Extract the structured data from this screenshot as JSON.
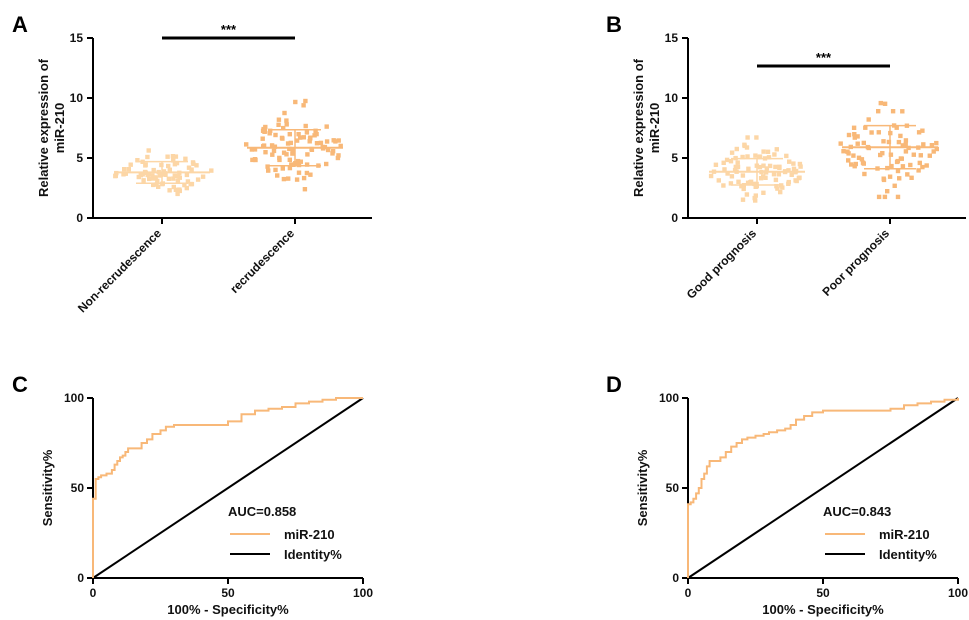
{
  "colors": {
    "light_orange": "#fcd6a6",
    "orange": "#f8b878",
    "roc": "#f8b878",
    "identity": "#000000"
  },
  "chart_data": [
    {
      "panel": "A",
      "type": "scatter",
      "ylabel_line1": "Relative expression of",
      "ylabel_line2": "miR-210",
      "ylim": [
        0,
        15
      ],
      "yticks": [
        "0",
        "5",
        "10",
        "15"
      ],
      "categories": [
        "Non-recrudescence",
        "recrudescence"
      ],
      "mean": [
        3.8,
        5.85
      ],
      "sd": [
        0.9,
        1.5
      ],
      "n": [
        80,
        100
      ],
      "series_colors": [
        "#fcd6a6",
        "#f8b878"
      ],
      "significance": "***"
    },
    {
      "panel": "B",
      "type": "scatter",
      "ylabel_line1": "Relative expression of",
      "ylabel_line2": "miR-210",
      "ylim": [
        0,
        15
      ],
      "yticks": [
        "0",
        "5",
        "10",
        "15"
      ],
      "categories": [
        "Good prognosis",
        "Poor prognosis"
      ],
      "mean": [
        3.85,
        5.9
      ],
      "sd": [
        1.1,
        1.8
      ],
      "n": [
        95,
        85
      ],
      "series_colors": [
        "#fcd6a6",
        "#f8b878"
      ],
      "significance": "***"
    },
    {
      "panel": "C",
      "type": "line",
      "xlabel": "100% - Specificity%",
      "ylabel": "Sensitivity%",
      "xlim": [
        0,
        100
      ],
      "ylim": [
        0,
        100
      ],
      "xticks": [
        "0",
        "50",
        "100"
      ],
      "yticks": [
        "0",
        "50",
        "100"
      ],
      "auc_label": "AUC=0.858",
      "series": [
        {
          "name": "miR-210",
          "x": [
            0,
            0,
            1,
            1,
            2,
            3,
            5,
            7,
            8,
            9,
            10,
            11,
            12,
            13,
            15,
            18,
            20,
            22,
            25,
            27,
            30,
            35,
            40,
            45,
            50,
            55,
            60,
            65,
            70,
            75,
            80,
            85,
            90,
            95,
            100
          ],
          "y": [
            0,
            44,
            44,
            55,
            56,
            57,
            58,
            60,
            63,
            65,
            67,
            68,
            70,
            72,
            72,
            75,
            77,
            80,
            82,
            84,
            85,
            85,
            85,
            85,
            87,
            91,
            93,
            94,
            95,
            97,
            98,
            99,
            100,
            100,
            100
          ]
        },
        {
          "name": "Identity%",
          "x": [
            0,
            100
          ],
          "y": [
            0,
            100
          ]
        }
      ]
    },
    {
      "panel": "D",
      "type": "line",
      "xlabel": "100% - Specificity%",
      "ylabel": "Sensitivity%",
      "xlim": [
        0,
        100
      ],
      "ylim": [
        0,
        100
      ],
      "xticks": [
        "0",
        "50",
        "100"
      ],
      "yticks": [
        "0",
        "50",
        "100"
      ],
      "auc_label": "AUC=0.843",
      "series": [
        {
          "name": "miR-210",
          "x": [
            0,
            0,
            1,
            2,
            3,
            4,
            5,
            6,
            7,
            8,
            10,
            12,
            14,
            16,
            18,
            20,
            22,
            25,
            28,
            30,
            33,
            36,
            38,
            40,
            43,
            46,
            50,
            55,
            60,
            65,
            70,
            75,
            80,
            85,
            90,
            95,
            100
          ],
          "y": [
            0,
            41,
            42,
            44,
            47,
            50,
            55,
            58,
            62,
            65,
            65,
            67,
            70,
            73,
            75,
            77,
            78,
            79,
            80,
            81,
            82,
            83,
            85,
            88,
            90,
            92,
            93,
            93,
            93,
            93,
            93,
            94,
            96,
            97,
            98,
            99,
            100
          ]
        },
        {
          "name": "Identity%",
          "x": [
            0,
            100
          ],
          "y": [
            0,
            100
          ]
        }
      ]
    }
  ]
}
